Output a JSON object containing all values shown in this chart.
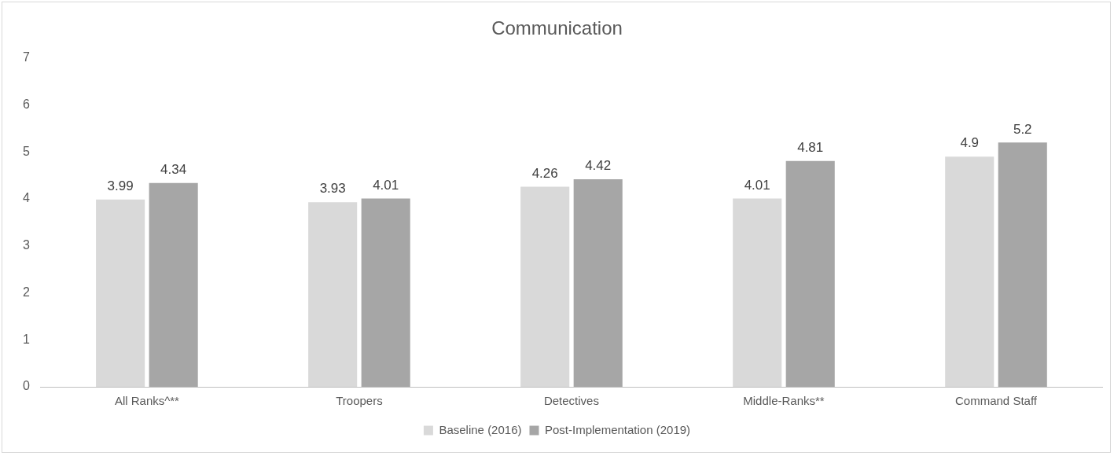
{
  "chart_data": {
    "type": "bar",
    "title": "Communication",
    "categories": [
      "All Ranks^**",
      "Troopers",
      "Detectives",
      "Middle-Ranks**",
      "Command Staff"
    ],
    "series": [
      {
        "name": "Baseline (2016)",
        "color": "#d9d9d9",
        "values": [
          3.99,
          3.93,
          4.26,
          4.01,
          4.9
        ]
      },
      {
        "name": "Post-Implementation (2019)",
        "color": "#a6a6a6",
        "values": [
          4.34,
          4.01,
          4.42,
          4.81,
          5.2
        ]
      }
    ],
    "ylim": [
      0,
      7
    ],
    "yticks": [
      0,
      1,
      2,
      3,
      4,
      5,
      6,
      7
    ],
    "grid": false,
    "legend": "bottom",
    "data_labels": true
  }
}
